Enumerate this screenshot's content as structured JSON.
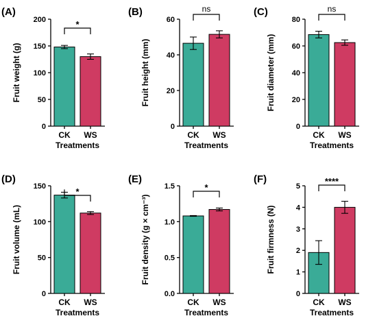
{
  "chart_data": [
    {
      "type": "bar",
      "panel_label": "(A)",
      "categories": [
        "CK",
        "WS"
      ],
      "values": [
        148,
        130
      ],
      "errors": [
        3,
        5
      ],
      "ylabel": "Fruit weight (g)",
      "xlabel": "Treatments",
      "ylim": [
        0,
        200
      ],
      "yticks": [
        "0",
        "50",
        "100",
        "150",
        "200"
      ],
      "significance": "*"
    },
    {
      "type": "bar",
      "panel_label": "(B)",
      "categories": [
        "CK",
        "WS"
      ],
      "values": [
        46.5,
        51.5
      ],
      "errors": [
        3.5,
        2.0
      ],
      "ylabel": "Fruit height (mm)",
      "xlabel": "Treatments",
      "ylim": [
        0,
        60
      ],
      "yticks": [
        "0",
        "20",
        "40",
        "60"
      ],
      "significance": "ns"
    },
    {
      "type": "bar",
      "panel_label": "(C)",
      "categories": [
        "CK",
        "WS"
      ],
      "values": [
        68.5,
        62.5
      ],
      "errors": [
        2.5,
        2.0
      ],
      "ylabel": "Fruit diameter (mm)",
      "xlabel": "Treatments",
      "ylim": [
        0,
        80
      ],
      "yticks": [
        "0",
        "20",
        "40",
        "60",
        "80"
      ],
      "significance": "ns"
    },
    {
      "type": "bar",
      "panel_label": "(D)",
      "categories": [
        "CK",
        "WS"
      ],
      "values": [
        137,
        112
      ],
      "errors": [
        4,
        2
      ],
      "ylabel": "Fruit volume (mL)",
      "xlabel": "Treatments",
      "ylim": [
        0,
        150
      ],
      "yticks": [
        "0",
        "50",
        "100",
        "150"
      ],
      "significance": "*"
    },
    {
      "type": "bar",
      "panel_label": "(E)",
      "categories": [
        "CK",
        "WS"
      ],
      "values": [
        1.08,
        1.17
      ],
      "errors": [
        0.005,
        0.02
      ],
      "ylabel": "Fruit density (g × cm⁻³)",
      "xlabel": "Treatments",
      "ylim": [
        0,
        1.5
      ],
      "yticks": [
        "0.0",
        "0.5",
        "1.0",
        "1.5"
      ],
      "significance": "*"
    },
    {
      "type": "bar",
      "panel_label": "(F)",
      "categories": [
        "CK",
        "WS"
      ],
      "values": [
        1.9,
        4.0
      ],
      "errors": [
        0.55,
        0.28
      ],
      "ylabel": "Fruit firmness (N)",
      "xlabel": "Treatments",
      "ylim": [
        0,
        5
      ],
      "yticks": [
        "0",
        "1",
        "2",
        "3",
        "4",
        "5"
      ],
      "significance": "****"
    }
  ],
  "colors": {
    "CK": "#3aab97",
    "WS": "#cf3b62"
  }
}
